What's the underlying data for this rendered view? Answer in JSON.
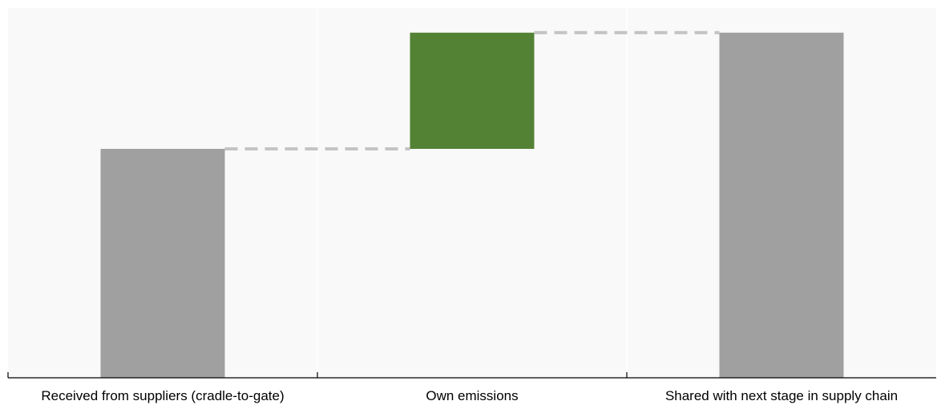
{
  "chart_data": {
    "type": "waterfall",
    "title": "",
    "xlabel": "",
    "ylabel": "",
    "categories": [
      "Received from suppliers (cradle-to-gate)",
      "Own emissions",
      "Shared with next stage in supply chain"
    ],
    "bars": [
      {
        "category": "Received from suppliers (cradle-to-gate)",
        "kind": "total",
        "start": 0,
        "end": 65
      },
      {
        "category": "Own emissions",
        "kind": "increase",
        "start": 65,
        "end": 98
      },
      {
        "category": "Shared with next stage in supply chain",
        "kind": "total",
        "start": 0,
        "end": 98
      }
    ],
    "ylim": [
      0,
      105
    ],
    "grid": true,
    "legend": "none",
    "connectors": "dashed",
    "colors": {
      "total": "#a0a0a0",
      "increase": "#548235",
      "connector": "#c4c4c4",
      "plot_background": "#f9f9f9",
      "gridline": "#ffffff",
      "axis": "#000000",
      "label": "#000000"
    }
  }
}
